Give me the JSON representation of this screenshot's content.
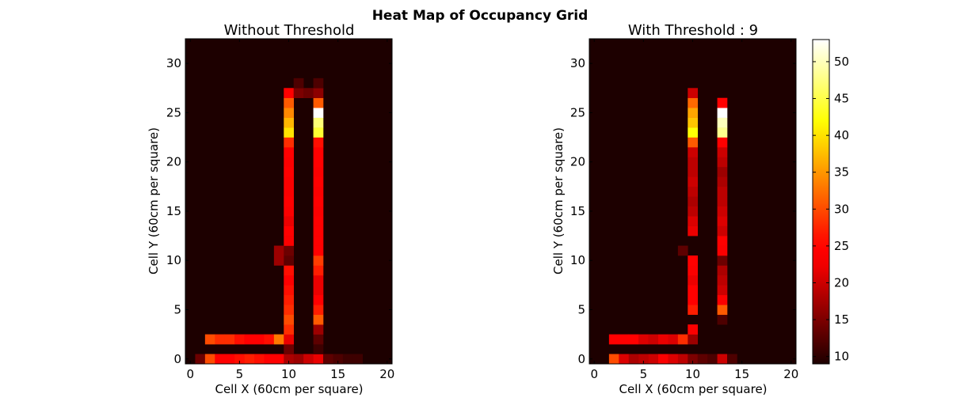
{
  "figure": {
    "title": "Heat Map of Occupancy Grid"
  },
  "chart_data": [
    {
      "type": "heatmap",
      "title": "Without Threshold",
      "xlabel": "Cell X (60cm per square)",
      "ylabel": "Cell Y (60cm per square)",
      "x_ticks": [
        "0",
        "5",
        "10",
        "15",
        "20"
      ],
      "y_ticks": [
        "0",
        "5",
        "10",
        "15",
        "20",
        "25",
        "30"
      ],
      "xlim": [
        -0.5,
        20.5
      ],
      "ylim": [
        -0.5,
        32.5
      ],
      "colormap": "hot",
      "vmin": 9,
      "vmax": 53,
      "background_value": 9,
      "cells": [
        {
          "x": 1,
          "y": 0,
          "v": 14
        },
        {
          "x": 2,
          "y": 0,
          "v": 30
        },
        {
          "x": 3,
          "y": 0,
          "v": 24
        },
        {
          "x": 4,
          "y": 0,
          "v": 25
        },
        {
          "x": 5,
          "y": 0,
          "v": 26
        },
        {
          "x": 6,
          "y": 0,
          "v": 27
        },
        {
          "x": 7,
          "y": 0,
          "v": 26
        },
        {
          "x": 8,
          "y": 0,
          "v": 25
        },
        {
          "x": 9,
          "y": 0,
          "v": 24
        },
        {
          "x": 10,
          "y": 0,
          "v": 18
        },
        {
          "x": 11,
          "y": 0,
          "v": 17
        },
        {
          "x": 12,
          "y": 0,
          "v": 20
        },
        {
          "x": 13,
          "y": 0,
          "v": 22
        },
        {
          "x": 14,
          "y": 0,
          "v": 13
        },
        {
          "x": 15,
          "y": 0,
          "v": 12
        },
        {
          "x": 16,
          "y": 0,
          "v": 11
        },
        {
          "x": 17,
          "y": 0,
          "v": 11
        },
        {
          "x": 10,
          "y": 1,
          "v": 14
        },
        {
          "x": 13,
          "y": 1,
          "v": 11
        },
        {
          "x": 2,
          "y": 2,
          "v": 30
        },
        {
          "x": 3,
          "y": 2,
          "v": 28
        },
        {
          "x": 4,
          "y": 2,
          "v": 28
        },
        {
          "x": 5,
          "y": 2,
          "v": 26
        },
        {
          "x": 6,
          "y": 2,
          "v": 25
        },
        {
          "x": 7,
          "y": 2,
          "v": 24
        },
        {
          "x": 8,
          "y": 2,
          "v": 26
        },
        {
          "x": 9,
          "y": 2,
          "v": 33
        },
        {
          "x": 10,
          "y": 2,
          "v": 22
        },
        {
          "x": 13,
          "y": 2,
          "v": 13
        },
        {
          "x": 10,
          "y": 3,
          "v": 28
        },
        {
          "x": 13,
          "y": 3,
          "v": 17
        },
        {
          "x": 10,
          "y": 4,
          "v": 30
        },
        {
          "x": 13,
          "y": 4,
          "v": 31
        },
        {
          "x": 10,
          "y": 5,
          "v": 28
        },
        {
          "x": 13,
          "y": 5,
          "v": 27
        },
        {
          "x": 10,
          "y": 6,
          "v": 27
        },
        {
          "x": 13,
          "y": 6,
          "v": 24
        },
        {
          "x": 10,
          "y": 7,
          "v": 26
        },
        {
          "x": 13,
          "y": 7,
          "v": 22
        },
        {
          "x": 10,
          "y": 8,
          "v": 24
        },
        {
          "x": 13,
          "y": 8,
          "v": 22
        },
        {
          "x": 10,
          "y": 9,
          "v": 26
        },
        {
          "x": 13,
          "y": 9,
          "v": 27
        },
        {
          "x": 9,
          "y": 10,
          "v": 17
        },
        {
          "x": 10,
          "y": 10,
          "v": 13
        },
        {
          "x": 13,
          "y": 10,
          "v": 29
        },
        {
          "x": 9,
          "y": 11,
          "v": 17
        },
        {
          "x": 10,
          "y": 11,
          "v": 14
        },
        {
          "x": 13,
          "y": 11,
          "v": 24
        },
        {
          "x": 10,
          "y": 12,
          "v": 23
        },
        {
          "x": 13,
          "y": 12,
          "v": 25
        },
        {
          "x": 10,
          "y": 13,
          "v": 24
        },
        {
          "x": 13,
          "y": 13,
          "v": 24
        },
        {
          "x": 10,
          "y": 14,
          "v": 22
        },
        {
          "x": 13,
          "y": 14,
          "v": 25
        },
        {
          "x": 10,
          "y": 15,
          "v": 23
        },
        {
          "x": 13,
          "y": 15,
          "v": 23
        },
        {
          "x": 10,
          "y": 16,
          "v": 24
        },
        {
          "x": 13,
          "y": 16,
          "v": 24
        },
        {
          "x": 10,
          "y": 17,
          "v": 23
        },
        {
          "x": 13,
          "y": 17,
          "v": 23
        },
        {
          "x": 10,
          "y": 18,
          "v": 23
        },
        {
          "x": 13,
          "y": 18,
          "v": 24
        },
        {
          "x": 10,
          "y": 19,
          "v": 24
        },
        {
          "x": 13,
          "y": 19,
          "v": 23
        },
        {
          "x": 10,
          "y": 20,
          "v": 23
        },
        {
          "x": 13,
          "y": 20,
          "v": 24
        },
        {
          "x": 10,
          "y": 21,
          "v": 24
        },
        {
          "x": 13,
          "y": 21,
          "v": 25
        },
        {
          "x": 10,
          "y": 22,
          "v": 28
        },
        {
          "x": 13,
          "y": 22,
          "v": 26
        },
        {
          "x": 10,
          "y": 23,
          "v": 40
        },
        {
          "x": 13,
          "y": 23,
          "v": 44
        },
        {
          "x": 10,
          "y": 24,
          "v": 37
        },
        {
          "x": 13,
          "y": 24,
          "v": 47
        },
        {
          "x": 10,
          "y": 25,
          "v": 34
        },
        {
          "x": 13,
          "y": 25,
          "v": 53
        },
        {
          "x": 10,
          "y": 26,
          "v": 31
        },
        {
          "x": 13,
          "y": 26,
          "v": 31
        },
        {
          "x": 10,
          "y": 27,
          "v": 24
        },
        {
          "x": 11,
          "y": 27,
          "v": 15
        },
        {
          "x": 12,
          "y": 27,
          "v": 14
        },
        {
          "x": 13,
          "y": 27,
          "v": 16
        },
        {
          "x": 11,
          "y": 28,
          "v": 12
        },
        {
          "x": 13,
          "y": 28,
          "v": 12
        }
      ]
    },
    {
      "type": "heatmap",
      "title": "With Threshold : 9",
      "xlabel": "Cell X (60cm per square)",
      "ylabel": "Cell Y (60cm per square)",
      "x_ticks": [
        "0",
        "5",
        "10",
        "15",
        "20"
      ],
      "y_ticks": [
        "0",
        "5",
        "10",
        "15",
        "20",
        "25",
        "30"
      ],
      "xlim": [
        -0.5,
        20.5
      ],
      "ylim": [
        -0.5,
        32.5
      ],
      "colormap": "hot",
      "vmin": 9,
      "vmax": 53,
      "background_value": 9,
      "colorbar_ticks": [
        "10",
        "15",
        "20",
        "25",
        "30",
        "35",
        "40",
        "45",
        "50"
      ],
      "cells": [
        {
          "x": 2,
          "y": 0,
          "v": 30
        },
        {
          "x": 3,
          "y": 0,
          "v": 21
        },
        {
          "x": 4,
          "y": 0,
          "v": 18
        },
        {
          "x": 5,
          "y": 0,
          "v": 19
        },
        {
          "x": 6,
          "y": 0,
          "v": 20
        },
        {
          "x": 7,
          "y": 0,
          "v": 23
        },
        {
          "x": 8,
          "y": 0,
          "v": 21
        },
        {
          "x": 9,
          "y": 0,
          "v": 19
        },
        {
          "x": 10,
          "y": 0,
          "v": 15
        },
        {
          "x": 11,
          "y": 0,
          "v": 13
        },
        {
          "x": 12,
          "y": 0,
          "v": 12
        },
        {
          "x": 13,
          "y": 0,
          "v": 20
        },
        {
          "x": 14,
          "y": 0,
          "v": 12
        },
        {
          "x": 2,
          "y": 2,
          "v": 25
        },
        {
          "x": 3,
          "y": 2,
          "v": 25
        },
        {
          "x": 4,
          "y": 2,
          "v": 24
        },
        {
          "x": 5,
          "y": 2,
          "v": 21
        },
        {
          "x": 6,
          "y": 2,
          "v": 20
        },
        {
          "x": 7,
          "y": 2,
          "v": 22
        },
        {
          "x": 8,
          "y": 2,
          "v": 21
        },
        {
          "x": 9,
          "y": 2,
          "v": 28
        },
        {
          "x": 10,
          "y": 2,
          "v": 17
        },
        {
          "x": 10,
          "y": 3,
          "v": 23
        },
        {
          "x": 13,
          "y": 4,
          "v": 12
        },
        {
          "x": 10,
          "y": 5,
          "v": 27
        },
        {
          "x": 13,
          "y": 5,
          "v": 31
        },
        {
          "x": 10,
          "y": 6,
          "v": 24
        },
        {
          "x": 13,
          "y": 6,
          "v": 23
        },
        {
          "x": 10,
          "y": 7,
          "v": 24
        },
        {
          "x": 13,
          "y": 7,
          "v": 20
        },
        {
          "x": 10,
          "y": 8,
          "v": 22
        },
        {
          "x": 13,
          "y": 8,
          "v": 19
        },
        {
          "x": 10,
          "y": 9,
          "v": 23
        },
        {
          "x": 13,
          "y": 9,
          "v": 18
        },
        {
          "x": 10,
          "y": 10,
          "v": 24
        },
        {
          "x": 13,
          "y": 10,
          "v": 14
        },
        {
          "x": 9,
          "y": 11,
          "v": 13
        },
        {
          "x": 13,
          "y": 11,
          "v": 23
        },
        {
          "x": 13,
          "y": 12,
          "v": 25
        },
        {
          "x": 10,
          "y": 13,
          "v": 22
        },
        {
          "x": 13,
          "y": 13,
          "v": 20
        },
        {
          "x": 10,
          "y": 14,
          "v": 21
        },
        {
          "x": 13,
          "y": 14,
          "v": 21
        },
        {
          "x": 10,
          "y": 15,
          "v": 19
        },
        {
          "x": 13,
          "y": 15,
          "v": 20
        },
        {
          "x": 10,
          "y": 16,
          "v": 18
        },
        {
          "x": 13,
          "y": 16,
          "v": 19
        },
        {
          "x": 10,
          "y": 17,
          "v": 19
        },
        {
          "x": 13,
          "y": 17,
          "v": 19
        },
        {
          "x": 10,
          "y": 18,
          "v": 20
        },
        {
          "x": 13,
          "y": 18,
          "v": 18
        },
        {
          "x": 10,
          "y": 19,
          "v": 19
        },
        {
          "x": 13,
          "y": 19,
          "v": 17
        },
        {
          "x": 10,
          "y": 20,
          "v": 19
        },
        {
          "x": 13,
          "y": 20,
          "v": 19
        },
        {
          "x": 10,
          "y": 21,
          "v": 20
        },
        {
          "x": 13,
          "y": 21,
          "v": 20
        },
        {
          "x": 10,
          "y": 22,
          "v": 31
        },
        {
          "x": 13,
          "y": 22,
          "v": 25
        },
        {
          "x": 10,
          "y": 23,
          "v": 42
        },
        {
          "x": 13,
          "y": 23,
          "v": 48
        },
        {
          "x": 10,
          "y": 24,
          "v": 38
        },
        {
          "x": 13,
          "y": 24,
          "v": 50
        },
        {
          "x": 10,
          "y": 25,
          "v": 36
        },
        {
          "x": 13,
          "y": 25,
          "v": 53
        },
        {
          "x": 10,
          "y": 26,
          "v": 32
        },
        {
          "x": 13,
          "y": 26,
          "v": 25
        },
        {
          "x": 10,
          "y": 27,
          "v": 20
        }
      ]
    }
  ]
}
